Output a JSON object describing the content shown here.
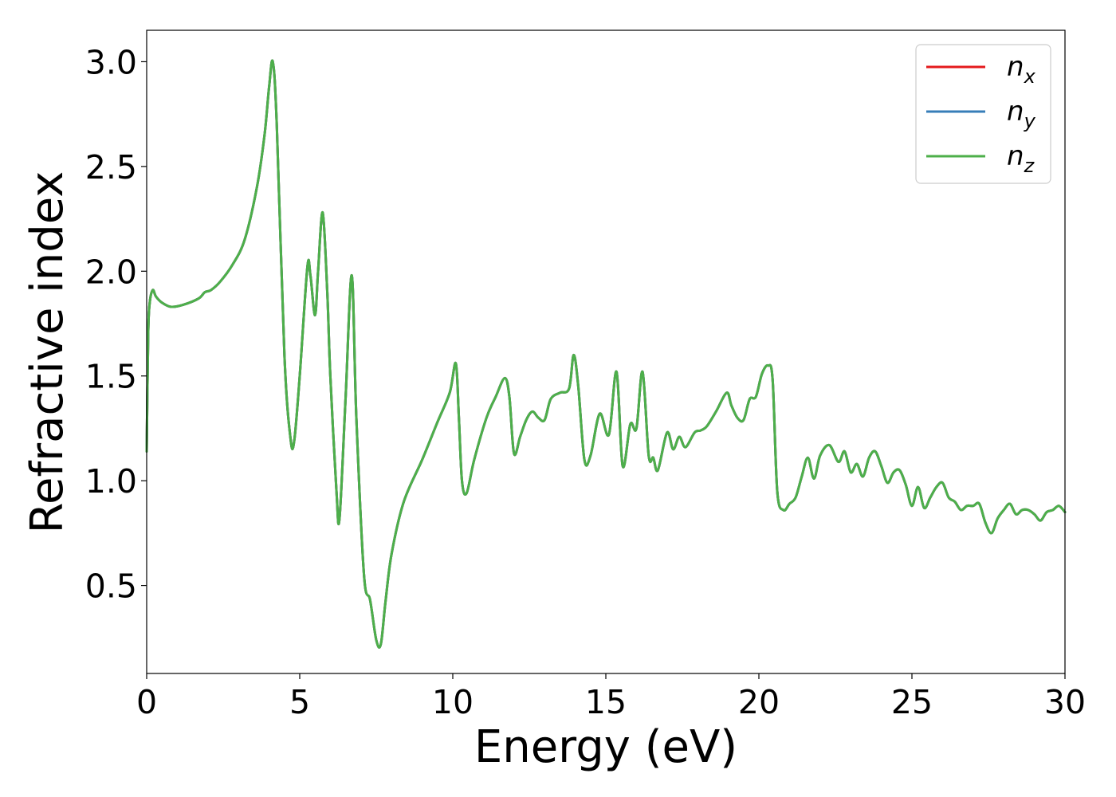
{
  "chart_data": {
    "type": "line",
    "xlabel": "Energy (eV)",
    "ylabel": "Refractive index",
    "xlim": [
      0,
      30
    ],
    "ylim": [
      0.08,
      3.15
    ],
    "xticks": [
      0,
      5,
      10,
      15,
      20,
      25,
      30
    ],
    "xtick_labels": [
      "0",
      "5",
      "10",
      "15",
      "20",
      "25",
      "30"
    ],
    "yticks": [
      0.5,
      1.0,
      1.5,
      2.0,
      2.5,
      3.0
    ],
    "ytick_labels": [
      "0.5",
      "1.0",
      "1.5",
      "2.0",
      "2.5",
      "3.0"
    ],
    "grid": false,
    "legend_position": "top-right",
    "x": [
      0,
      0.05,
      0.1,
      0.2,
      0.3,
      0.5,
      0.8,
      1.2,
      1.7,
      1.9,
      2.1,
      2.4,
      2.8,
      3.2,
      3.6,
      3.85,
      4.0,
      4.12,
      4.25,
      4.5,
      4.7,
      4.82,
      5.0,
      5.25,
      5.35,
      5.5,
      5.6,
      5.75,
      5.9,
      6.0,
      6.2,
      6.3,
      6.5,
      6.7,
      6.85,
      7.1,
      7.3,
      7.5,
      7.65,
      7.8,
      8.0,
      8.4,
      9.0,
      9.5,
      9.9,
      10.1,
      10.2,
      10.3,
      10.45,
      10.7,
      11.1,
      11.4,
      11.7,
      11.85,
      12.0,
      12.2,
      12.4,
      12.6,
      12.8,
      13.0,
      13.2,
      13.5,
      13.8,
      13.95,
      14.1,
      14.3,
      14.5,
      14.8,
      15.1,
      15.35,
      15.55,
      15.8,
      16.0,
      16.2,
      16.4,
      16.55,
      16.7,
      17.0,
      17.2,
      17.4,
      17.6,
      17.9,
      18.1,
      18.3,
      18.6,
      18.95,
      19.1,
      19.3,
      19.5,
      19.7,
      19.9,
      20.1,
      20.3,
      20.45,
      20.6,
      20.8,
      21.0,
      21.2,
      21.4,
      21.6,
      21.8,
      22.0,
      22.3,
      22.6,
      22.8,
      23.0,
      23.2,
      23.4,
      23.6,
      23.8,
      24.0,
      24.2,
      24.4,
      24.6,
      24.8,
      25.0,
      25.2,
      25.4,
      25.6,
      25.8,
      26.0,
      26.2,
      26.4,
      26.6,
      26.8,
      27.0,
      27.2,
      27.4,
      27.6,
      27.8,
      28.0,
      28.2,
      28.4,
      28.6,
      28.8,
      29.0,
      29.2,
      29.4,
      29.6,
      29.8,
      30.0
    ],
    "series": [
      {
        "name": "n_x",
        "color": "#e41a1c",
        "y": [
          1.14,
          1.7,
          1.85,
          1.91,
          1.88,
          1.85,
          1.83,
          1.84,
          1.87,
          1.9,
          1.91,
          1.95,
          2.03,
          2.15,
          2.4,
          2.65,
          2.88,
          3.0,
          2.7,
          1.6,
          1.2,
          1.19,
          1.5,
          2.02,
          1.98,
          1.79,
          2.0,
          2.28,
          1.9,
          1.5,
          0.95,
          0.82,
          1.4,
          1.98,
          1.3,
          0.55,
          0.43,
          0.24,
          0.22,
          0.42,
          0.65,
          0.9,
          1.1,
          1.28,
          1.42,
          1.56,
          1.3,
          1.0,
          0.94,
          1.1,
          1.3,
          1.4,
          1.49,
          1.4,
          1.13,
          1.21,
          1.29,
          1.33,
          1.3,
          1.29,
          1.39,
          1.42,
          1.44,
          1.6,
          1.45,
          1.1,
          1.12,
          1.32,
          1.22,
          1.52,
          1.07,
          1.27,
          1.25,
          1.52,
          1.12,
          1.11,
          1.05,
          1.23,
          1.15,
          1.21,
          1.16,
          1.23,
          1.24,
          1.26,
          1.33,
          1.42,
          1.36,
          1.3,
          1.29,
          1.39,
          1.4,
          1.51,
          1.55,
          1.48,
          0.95,
          0.86,
          0.89,
          0.92,
          1.02,
          1.11,
          1.01,
          1.12,
          1.17,
          1.09,
          1.14,
          1.04,
          1.08,
          1.02,
          1.11,
          1.14,
          1.07,
          0.99,
          1.04,
          1.05,
          0.98,
          0.88,
          0.97,
          0.87,
          0.92,
          0.97,
          0.99,
          0.92,
          0.9,
          0.86,
          0.88,
          0.88,
          0.89,
          0.8,
          0.75,
          0.82,
          0.86,
          0.89,
          0.84,
          0.86,
          0.86,
          0.84,
          0.81,
          0.85,
          0.86,
          0.88,
          0.85
        ]
      },
      {
        "name": "n_y",
        "color": "#377eb8",
        "y": [
          1.14,
          1.7,
          1.85,
          1.91,
          1.88,
          1.85,
          1.83,
          1.84,
          1.87,
          1.9,
          1.91,
          1.95,
          2.03,
          2.15,
          2.4,
          2.65,
          2.88,
          3.0,
          2.7,
          1.6,
          1.2,
          1.19,
          1.5,
          2.02,
          1.98,
          1.79,
          2.0,
          2.28,
          1.9,
          1.5,
          0.95,
          0.82,
          1.4,
          1.98,
          1.3,
          0.55,
          0.43,
          0.24,
          0.22,
          0.42,
          0.65,
          0.9,
          1.1,
          1.28,
          1.42,
          1.56,
          1.3,
          1.0,
          0.94,
          1.1,
          1.3,
          1.4,
          1.49,
          1.4,
          1.13,
          1.21,
          1.29,
          1.33,
          1.3,
          1.29,
          1.39,
          1.42,
          1.44,
          1.6,
          1.45,
          1.1,
          1.12,
          1.32,
          1.22,
          1.52,
          1.07,
          1.27,
          1.25,
          1.52,
          1.12,
          1.11,
          1.05,
          1.23,
          1.15,
          1.21,
          1.16,
          1.23,
          1.24,
          1.26,
          1.33,
          1.42,
          1.36,
          1.3,
          1.29,
          1.39,
          1.4,
          1.51,
          1.55,
          1.48,
          0.95,
          0.86,
          0.89,
          0.92,
          1.02,
          1.11,
          1.01,
          1.12,
          1.17,
          1.09,
          1.14,
          1.04,
          1.08,
          1.02,
          1.11,
          1.14,
          1.07,
          0.99,
          1.04,
          1.05,
          0.98,
          0.88,
          0.97,
          0.87,
          0.92,
          0.97,
          0.99,
          0.92,
          0.9,
          0.86,
          0.88,
          0.88,
          0.89,
          0.8,
          0.75,
          0.82,
          0.86,
          0.89,
          0.84,
          0.86,
          0.86,
          0.84,
          0.81,
          0.85,
          0.86,
          0.88,
          0.85
        ]
      },
      {
        "name": "n_z",
        "color": "#4daf4a",
        "y": [
          1.14,
          1.7,
          1.85,
          1.91,
          1.88,
          1.85,
          1.83,
          1.84,
          1.87,
          1.9,
          1.91,
          1.95,
          2.03,
          2.15,
          2.4,
          2.65,
          2.88,
          3.0,
          2.7,
          1.6,
          1.2,
          1.19,
          1.5,
          2.02,
          1.98,
          1.79,
          2.0,
          2.28,
          1.9,
          1.5,
          0.95,
          0.82,
          1.4,
          1.98,
          1.3,
          0.55,
          0.43,
          0.24,
          0.22,
          0.42,
          0.65,
          0.9,
          1.1,
          1.28,
          1.42,
          1.56,
          1.3,
          1.0,
          0.94,
          1.1,
          1.3,
          1.4,
          1.49,
          1.4,
          1.13,
          1.21,
          1.29,
          1.33,
          1.3,
          1.29,
          1.39,
          1.42,
          1.44,
          1.6,
          1.45,
          1.1,
          1.12,
          1.32,
          1.22,
          1.52,
          1.07,
          1.27,
          1.25,
          1.52,
          1.12,
          1.11,
          1.05,
          1.23,
          1.15,
          1.21,
          1.16,
          1.23,
          1.24,
          1.26,
          1.33,
          1.42,
          1.36,
          1.3,
          1.29,
          1.39,
          1.4,
          1.51,
          1.55,
          1.48,
          0.95,
          0.86,
          0.89,
          0.92,
          1.02,
          1.11,
          1.01,
          1.12,
          1.17,
          1.09,
          1.14,
          1.04,
          1.08,
          1.02,
          1.11,
          1.14,
          1.07,
          0.99,
          1.04,
          1.05,
          0.98,
          0.88,
          0.97,
          0.87,
          0.92,
          0.97,
          0.99,
          0.92,
          0.9,
          0.86,
          0.88,
          0.88,
          0.89,
          0.8,
          0.75,
          0.82,
          0.86,
          0.89,
          0.84,
          0.86,
          0.86,
          0.84,
          0.81,
          0.85,
          0.86,
          0.88,
          0.85
        ]
      }
    ],
    "legend": [
      {
        "base": "n",
        "sub": "x",
        "color": "#e41a1c"
      },
      {
        "base": "n",
        "sub": "y",
        "color": "#377eb8"
      },
      {
        "base": "n",
        "sub": "z",
        "color": "#4daf4a"
      }
    ]
  }
}
